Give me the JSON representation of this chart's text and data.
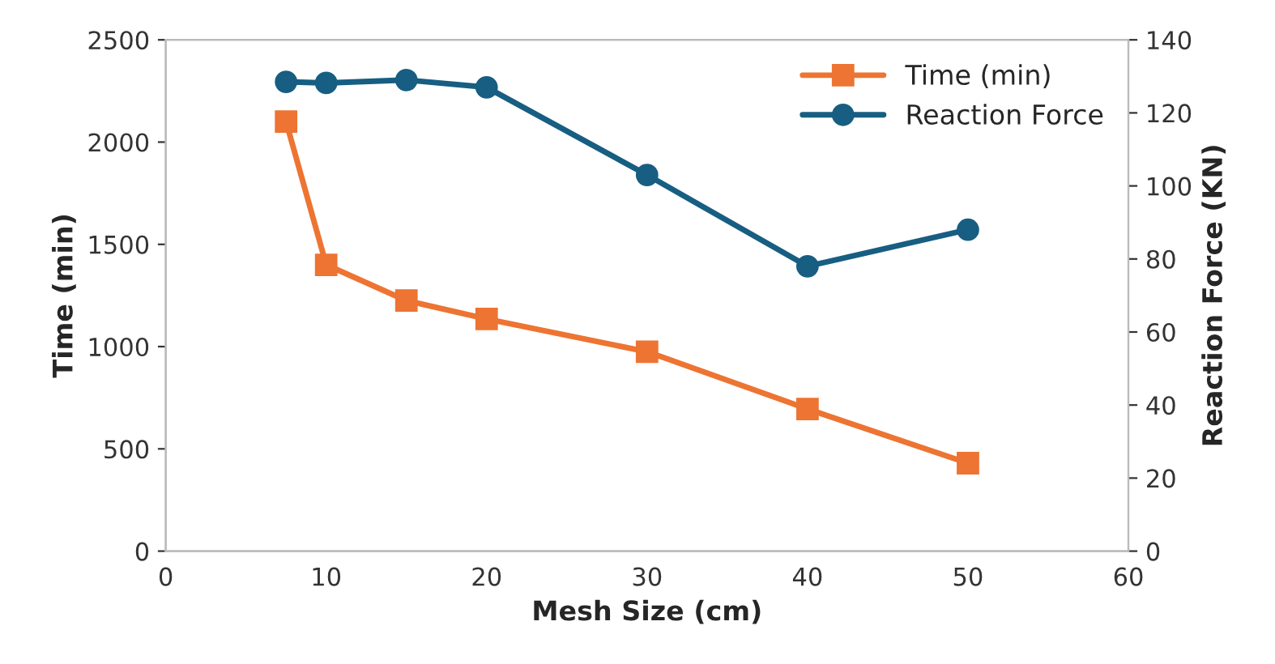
{
  "chart_data": {
    "type": "line",
    "xlabel": "Mesh Size (cm)",
    "ylabel": "Time (min)",
    "y2label": "Reaction Force (KN)",
    "x": [
      7.5,
      10,
      15,
      20,
      30,
      40,
      50
    ],
    "series": [
      {
        "name": "Time (min)",
        "color": "#ed7432",
        "marker": "square",
        "values": [
          2100,
          1400,
          1225,
          1135,
          975,
          695,
          430
        ]
      },
      {
        "name": "Reaction Force",
        "color": "#175e82",
        "marker": "circle",
        "axis": "y2",
        "values": [
          128.5,
          128.2,
          129,
          127,
          103,
          78,
          88
        ]
      }
    ],
    "xlim": [
      0,
      60
    ],
    "xticks": [
      0,
      10,
      20,
      30,
      40,
      50,
      60
    ],
    "ylim": [
      0,
      2500
    ],
    "yticks": [
      0,
      500,
      1000,
      1500,
      2000,
      2500
    ],
    "y2lim": [
      0,
      140
    ],
    "y2ticks": [
      0,
      20,
      40,
      60,
      80,
      100,
      120,
      140
    ],
    "grid": false,
    "legend": "top right",
    "line_style": "solid"
  }
}
